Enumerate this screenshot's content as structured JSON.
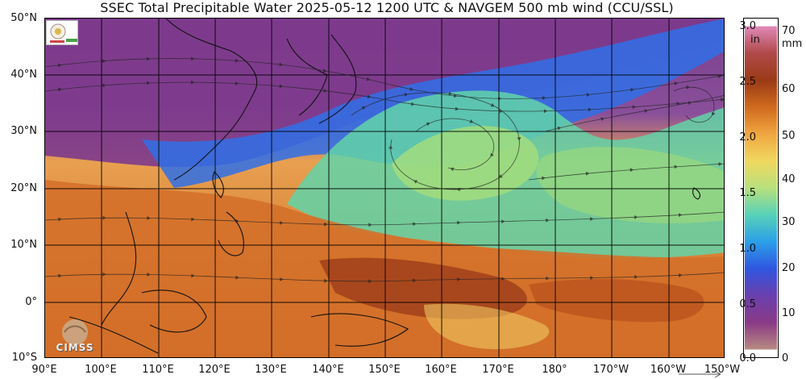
{
  "title": "SSEC Total Precipitable Water  2025-05-12 1200 UTC & NAVGEM 500 mb wind (CCU/SSL)",
  "lat_labels": [
    "50°N",
    "40°N",
    "30°N",
    "20°N",
    "10°N",
    "0°",
    "10°S"
  ],
  "lon_labels": [
    "90°E",
    "100°E",
    "110°E",
    "120°E",
    "130°E",
    "140°E",
    "150°E",
    "160°E",
    "170°E",
    "180°",
    "170°W",
    "160°W",
    "150°W"
  ],
  "colorbar": {
    "inch_unit": "in",
    "mm_unit": "mm",
    "inch_ticks": [
      "3.0",
      "2.5",
      "2.0",
      "1.5",
      "1.0",
      "0.5",
      "0.0"
    ],
    "mm_ticks": [
      "70",
      "60",
      "50",
      "40",
      "30",
      "20",
      "10",
      "0"
    ],
    "colors": [
      "#b88a82",
      "#8a3a86",
      "#6a3fae",
      "#2f56e0",
      "#2b9fe8",
      "#57d2b8",
      "#b8e07c",
      "#f0d860",
      "#f0a640",
      "#cf6a1e",
      "#9a3a16",
      "#b04a4a",
      "#e08ab8"
    ]
  },
  "logos": {
    "cimss": "CIMSS"
  }
}
